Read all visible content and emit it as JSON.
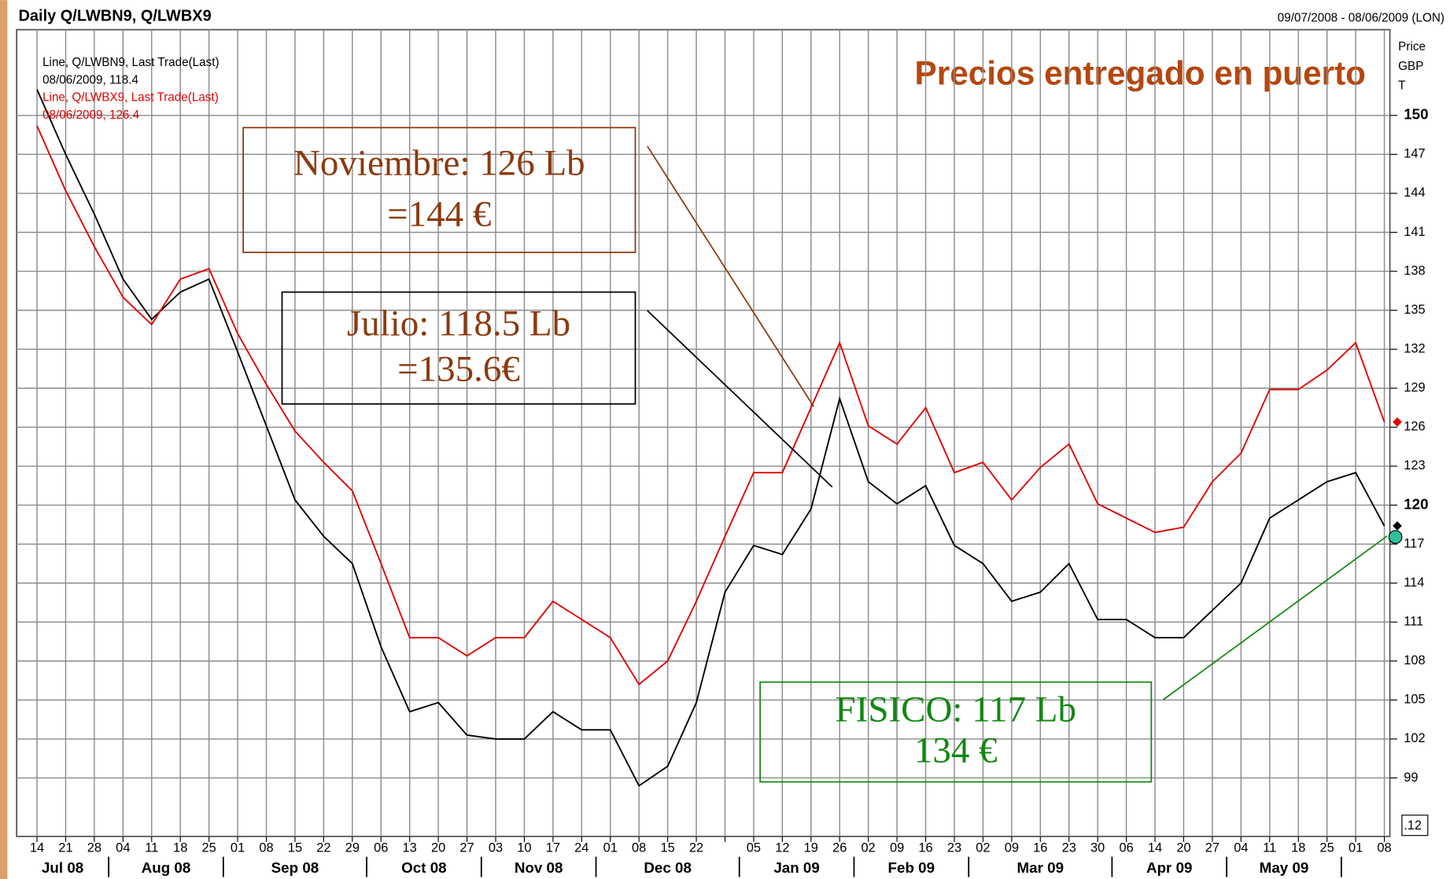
{
  "chart_data": {
    "type": "line",
    "title": "Daily Q/LWBN9, Q/LWBX9",
    "date_range": "09/07/2008 - 08/06/2009 (LON)",
    "y_axis_label": [
      "Price",
      "GBP",
      "T"
    ],
    "subtitle": "Precios entregado en puerto",
    "legend_text": [
      {
        "lines": [
          "Line, Q/LWBN9, Last Trade(Last)",
          "08/06/2009, 118.4"
        ],
        "color": "#000000"
      },
      {
        "lines": [
          "Line, Q/LWBX9, Last Trade(Last)",
          "08/06/2009, 126.4"
        ],
        "color": "#e00000"
      }
    ],
    "categories": [
      "14",
      "21",
      "28",
      "04",
      "11",
      "18",
      "25",
      "01",
      "08",
      "15",
      "22",
      "29",
      "06",
      "13",
      "20",
      "27",
      "03",
      "10",
      "17",
      "24",
      "01",
      "08",
      "15",
      "22",
      null,
      "05",
      "12",
      "19",
      "26",
      "02",
      "09",
      "16",
      "23",
      "02",
      "09",
      "16",
      "23",
      "30",
      "06",
      "14",
      "20",
      "27",
      "04",
      "11",
      "18",
      "25",
      "01",
      "08"
    ],
    "months": [
      "Jul 08",
      "Aug 08",
      "Sep 08",
      "Oct 08",
      "Nov 08",
      "Dec 08",
      "Jan 09",
      "Feb 09",
      "Mar 09",
      "Apr 09",
      "May 09"
    ],
    "series": [
      {
        "name": "Q/LWBN9",
        "color": "#000000",
        "values": [
          152,
          147,
          142.4,
          137.4,
          134.3,
          136.4,
          137.4,
          131.8,
          126.1,
          120.4,
          117.6,
          115.5,
          109.1,
          104.1,
          104.8,
          102.3,
          102,
          102,
          104.1,
          102.7,
          102.7,
          98.4,
          99.9,
          104.8,
          113.3,
          116.9,
          116.2,
          119.7,
          128.2,
          121.8,
          120.1,
          121.5,
          116.9,
          115.5,
          112.6,
          113.3,
          115.5,
          111.2,
          111.2,
          109.8,
          109.8,
          111.9,
          114,
          119,
          120.4,
          121.8,
          122.5,
          118.4
        ]
      },
      {
        "name": "Q/LWBX9",
        "color": "#e00000",
        "values": [
          149.2,
          144.2,
          139.9,
          136,
          133.9,
          137.4,
          138.2,
          133.2,
          129.3,
          125.7,
          123.3,
          121.1,
          115.5,
          109.8,
          109.8,
          108.4,
          109.8,
          109.8,
          112.6,
          111.2,
          109.8,
          106.2,
          108,
          112.6,
          117.6,
          122.5,
          122.5,
          127.5,
          132.5,
          126.1,
          124.7,
          127.5,
          122.5,
          123.3,
          120.4,
          122.9,
          124.7,
          120.1,
          119,
          117.9,
          118.3,
          121.8,
          124,
          128.9,
          128.9,
          130.4,
          132.5,
          126.4
        ]
      }
    ],
    "ylim": [
      94.5,
      156.6
    ],
    "yticks": [
      99,
      102,
      105,
      108,
      111,
      114,
      117,
      120,
      123,
      126,
      129,
      132,
      135,
      138,
      141,
      144,
      147,
      150
    ],
    "grid": true,
    "corner_label": ".12",
    "annotations": [
      {
        "lines": [
          "Noviembre:  126 Lb",
          "=144 €"
        ],
        "color": "#8b3a0f"
      },
      {
        "lines": [
          "Julio:  118.5 Lb",
          "=135.6€"
        ],
        "color": "#8b3a0f"
      },
      {
        "lines": [
          "FISICO: 117 Lb",
          "134 €"
        ],
        "color": "#118811"
      }
    ]
  }
}
